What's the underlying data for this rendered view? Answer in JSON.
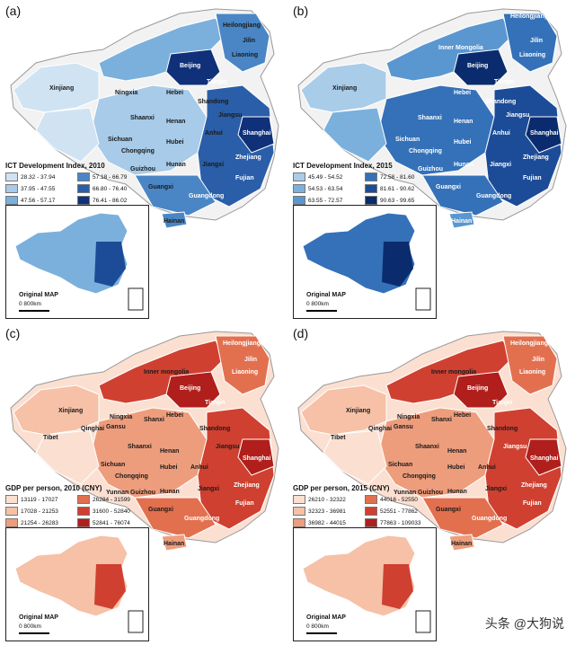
{
  "panels": [
    {
      "label": "(a)",
      "legend_title": "ICT Development Index, 2010",
      "legend": [
        "28.32 - 37.94",
        "37.95 - 47.55",
        "47.56 - 57.17",
        "57.18 - 66.79",
        "66.80 - 76.40",
        "76.41 - 86.02"
      ],
      "colors": [
        "#cfe3f3",
        "#a7cbe8",
        "#7bb0dc",
        "#4a86c5",
        "#2a5ea8",
        "#10307a"
      ],
      "provinces": [
        "Heilongjiang",
        "Jilin",
        "Liaoning",
        "Beijing",
        "Tianjin",
        "Xinjiang",
        "Ningxia",
        "Hebei",
        "Shandong",
        "Shaanxi",
        "Henan",
        "Jiangsu",
        "Sichuan",
        "Hubei",
        "Anhui",
        "Shanghai",
        "Chongqing",
        "Zhejiang",
        "Guizhou",
        "Hunan",
        "Jiangxi",
        "Fujian",
        "Guangxi",
        "Guangdong",
        "Hainan"
      ],
      "inset_title": "Original MAP",
      "scale": "0    800km"
    },
    {
      "label": "(b)",
      "legend_title": "ICT Development Index, 2015",
      "legend": [
        "45.49 - 54.52",
        "54.53 - 63.54",
        "63.55 - 72.57",
        "72.58 - 81.60",
        "81.61 - 90.62",
        "90.63 - 99.65"
      ],
      "colors": [
        "#a9cce9",
        "#7bb0dc",
        "#5a97d0",
        "#3471b8",
        "#1c4c97",
        "#0a2c6e"
      ],
      "provinces": [
        "Heilongjiang",
        "Jilin",
        "Inner Mongolia",
        "Liaoning",
        "Beijing",
        "Tianjin",
        "Xinjiang",
        "Hebei",
        "Shandong",
        "Shaanxi",
        "Henan",
        "Jiangsu",
        "Sichuan",
        "Hubei",
        "Anhui",
        "Shanghai",
        "Chongqing",
        "Zhejiang",
        "Guizhou",
        "Hunan",
        "Jiangxi",
        "Fujian",
        "Guangxi",
        "Guangdong",
        "Hainan"
      ],
      "inset_title": "Original MAP",
      "scale": "0    800km"
    },
    {
      "label": "(c)",
      "legend_title": "GDP per person, 2010 (CNY)",
      "legend": [
        "13119 - 17027",
        "17028 - 21253",
        "21254 - 26283",
        "26284 - 31599",
        "31600 - 52840",
        "52841 - 76074"
      ],
      "colors": [
        "#fbe0d2",
        "#f6c1a6",
        "#ee9d7c",
        "#e2704f",
        "#cf4030",
        "#b01f1c"
      ],
      "provinces": [
        "Heilongjiang",
        "Jilin",
        "Inner mongolia",
        "Liaoning",
        "Beijing",
        "Tianjin",
        "Xinjiang",
        "Ningxia",
        "Gansu",
        "Shanxi",
        "Hebei",
        "Qinghai",
        "Tibet",
        "Shandong",
        "Shaanxi",
        "Henan",
        "Jiangsu",
        "Sichuan",
        "Anhui",
        "Chongqing",
        "Hubei",
        "Shanghai",
        "Zhejiang",
        "Yunnan",
        "Guizhou",
        "Hunan",
        "Jiangxi",
        "Fujian",
        "Guangxi",
        "Guangdong",
        "Hainan"
      ],
      "inset_title": "Original MAP",
      "scale": "0    800km"
    },
    {
      "label": "(d)",
      "legend_title": "GDP per person, 2015 (CNY)",
      "legend": [
        "26210 - 32322",
        "32323 - 36981",
        "36982 - 44015",
        "44016 - 52550",
        "52551 - 77862",
        "77863 - 109033"
      ],
      "colors": [
        "#fbe0d2",
        "#f6c1a6",
        "#ee9d7c",
        "#e2704f",
        "#cf4030",
        "#b01f1c"
      ],
      "provinces": [
        "Heilongjiang",
        "Jilin",
        "Inner mongolia",
        "Liaoning",
        "Beijing",
        "Tianjin",
        "Xinjiang",
        "Ningxia",
        "Gansu",
        "Shanxi",
        "Hebei",
        "Qinghai",
        "Tibet",
        "Shandong",
        "Shaanxi",
        "Henan",
        "Jiangsu",
        "Sichuan",
        "Anhui",
        "Chongqing",
        "Hubei",
        "Shanghai",
        "Zhejiang",
        "Yunnan",
        "Guizhou",
        "Hunan",
        "Jiangxi",
        "Fujian",
        "Guangxi",
        "Guangdong",
        "Hainan"
      ],
      "inset_title": "Original MAP",
      "scale": "0    800km"
    }
  ],
  "watermark": "头条 @大狗说"
}
